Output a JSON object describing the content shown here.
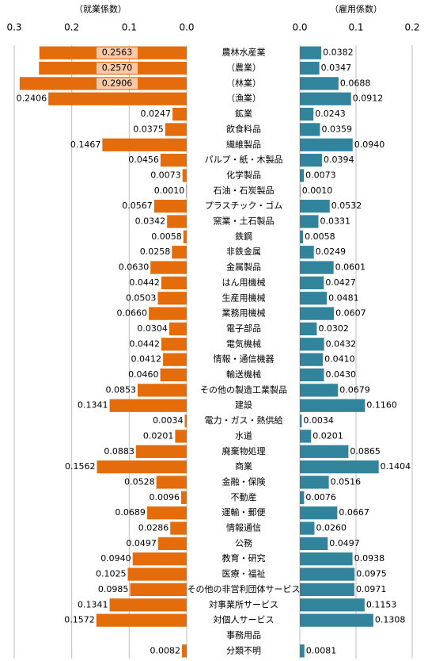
{
  "chart_data": {
    "type": "butterfly",
    "categories": [
      "農林水産業",
      "（農業）",
      "（林業）",
      "（漁業）",
      "鉱業",
      "飲食料品",
      "繊維製品",
      "パルプ・紙・木製品",
      "化学製品",
      "石油・石炭製品",
      "プラスチック・ゴム",
      "窯業・土石製品",
      "鉄鋼",
      "非鉄金属",
      "金属製品",
      "はん用機械",
      "生産用機械",
      "業務用機械",
      "電子部品",
      "電気機械",
      "情報・通信機器",
      "輸送機械",
      "その他の製造工業製品",
      "建設",
      "電力・ガス・熱供給",
      "水道",
      "廃棄物処理",
      "商業",
      "金融・保険",
      "不動産",
      "運輸・郵便",
      "情報通信",
      "公務",
      "教育・研究",
      "医療・福祉",
      "その他の非営利団体サービス",
      "対事業所サービス",
      "対個人サービス",
      "事務用品",
      "分類不明"
    ],
    "grid": true,
    "series": [
      {
        "name": "（就業係数）",
        "color": "#e46c0a",
        "side": "left",
        "xlim": [
          0,
          0.3
        ],
        "xticks": [
          0.3,
          0.2,
          0.1,
          {
            "value": 0,
            "label": "0.0"
          }
        ],
        "values": [
          0.2563,
          0.257,
          0.2906,
          0.2406,
          0.0247,
          0.0375,
          0.1467,
          0.0456,
          0.0073,
          0.001,
          0.0567,
          0.0342,
          0.0058,
          0.0258,
          0.063,
          0.0442,
          0.0503,
          0.066,
          0.0304,
          0.0442,
          0.0412,
          0.046,
          0.0853,
          0.1341,
          0.0034,
          0.0201,
          0.0883,
          0.1562,
          0.0528,
          0.0096,
          0.0689,
          0.0286,
          0.0497,
          0.094,
          0.1025,
          0.0985,
          0.1341,
          0.1572,
          null,
          0.0082
        ],
        "value_labels": [
          "0.2563",
          "0.2570",
          "0.2906",
          "0.2406",
          "0.0247",
          "0.0375",
          "0.1467",
          "0.0456",
          "0.0073",
          "0.0010",
          "0.0567",
          "0.0342",
          "0.0058",
          "0.0258",
          "0.0630",
          "0.0442",
          "0.0503",
          "0.0660",
          "0.0304",
          "0.0442",
          "0.0412",
          "0.0460",
          "0.0853",
          "0.1341",
          "0.0034",
          "0.0201",
          "0.0883",
          "0.1562",
          "0.0528",
          "0.0096",
          "0.0689",
          "0.0286",
          "0.0497",
          "0.0940",
          "0.1025",
          "0.0985",
          "0.1341",
          "0.1572",
          null,
          "0.0082"
        ]
      },
      {
        "name": "（雇用係数）",
        "color": "#31849b",
        "side": "right",
        "xlim": [
          0,
          0.2
        ],
        "xticks": [
          {
            "value": 0,
            "label": "0.0"
          },
          0.1,
          0.2
        ],
        "values": [
          0.0382,
          0.0347,
          0.0688,
          0.0912,
          0.0243,
          0.0359,
          0.094,
          0.0394,
          0.0073,
          0.001,
          0.0532,
          0.0331,
          0.0058,
          0.0249,
          0.0601,
          0.0427,
          0.0481,
          0.0607,
          0.0302,
          0.0432,
          0.041,
          0.043,
          0.0679,
          0.116,
          0.0034,
          0.0201,
          0.0865,
          0.1404,
          0.0516,
          0.0076,
          0.0667,
          0.026,
          0.0497,
          0.0938,
          0.0975,
          0.0971,
          0.1153,
          0.1308,
          null,
          0.0081
        ],
        "value_labels": [
          "0.0382",
          "0.0347",
          "0.0688",
          "0.0912",
          "0.0243",
          "0.0359",
          "0.0940",
          "0.0394",
          "0.0073",
          "0.0010",
          "0.0532",
          "0.0331",
          "0.0058",
          "0.0249",
          "0.0601",
          "0.0427",
          "0.0481",
          "0.0607",
          "0.0302",
          "0.0432",
          "0.0410",
          "0.0430",
          "0.0679",
          "0.1160",
          "0.0034",
          "0.0201",
          "0.0865",
          "0.1404",
          "0.0516",
          "0.0076",
          "0.0667",
          "0.0260",
          "0.0497",
          "0.0938",
          "0.0975",
          "0.0971",
          "0.1153",
          "0.1308",
          null,
          "0.0081"
        ]
      }
    ]
  }
}
